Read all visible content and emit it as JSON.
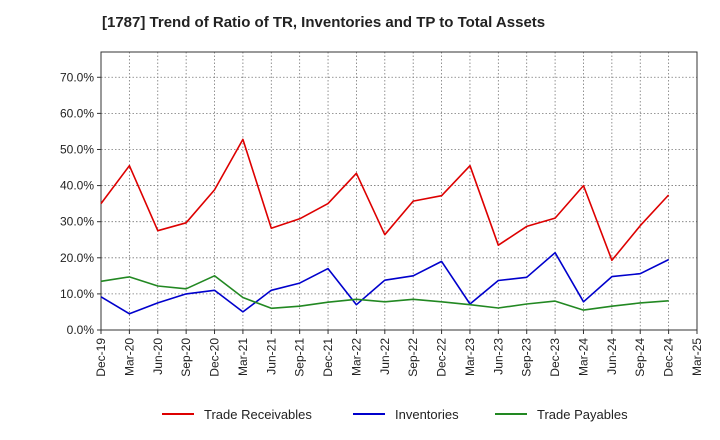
{
  "chart_data": {
    "type": "line",
    "title": "[1787]  Trend of Ratio of TR, Inventories and TP to Total Assets",
    "xlabel": "",
    "ylabel": "",
    "ylim": [
      0,
      0.77
    ],
    "yticks": [
      0,
      0.1,
      0.2,
      0.3,
      0.4,
      0.5,
      0.6,
      0.7
    ],
    "ytick_labels": [
      "0.0%",
      "10.0%",
      "20.0%",
      "30.0%",
      "40.0%",
      "50.0%",
      "60.0%",
      "70.0%"
    ],
    "x": [
      "2019-12",
      "2020-03",
      "2020-06",
      "2020-09",
      "2020-12",
      "2021-03",
      "2021-06",
      "2021-09",
      "2021-12",
      "2022-03",
      "2022-06",
      "2022-09",
      "2022-12",
      "2023-03",
      "2023-06",
      "2023-09",
      "2023-12",
      "2024-03",
      "2024-06",
      "2024-09",
      "2024-12",
      "2025-03"
    ],
    "xtick_labels": [
      "Dec-19",
      "Mar-20",
      "Jun-20",
      "Sep-20",
      "Dec-20",
      "Mar-21",
      "Jun-21",
      "Sep-21",
      "Dec-21",
      "Mar-22",
      "Jun-22",
      "Sep-22",
      "Dec-22",
      "Mar-23",
      "Jun-23",
      "Sep-23",
      "Dec-23",
      "Mar-24",
      "Jun-24",
      "Sep-24",
      "Dec-24",
      "Mar-25"
    ],
    "grid": true,
    "legend": "bottom",
    "series": [
      {
        "name": "Trade Receivables",
        "color": "#dd0000",
        "values": [
          0.35,
          0.455,
          0.275,
          0.297,
          0.388,
          0.528,
          0.282,
          0.308,
          0.35,
          0.434,
          0.264,
          0.357,
          0.372,
          0.455,
          0.235,
          0.287,
          0.31,
          0.4,
          0.193,
          0.289,
          0.374,
          null
        ]
      },
      {
        "name": "Inventories",
        "color": "#0000cc",
        "values": [
          0.092,
          0.045,
          0.075,
          0.1,
          0.11,
          0.05,
          0.11,
          0.13,
          0.17,
          0.07,
          0.138,
          0.15,
          0.19,
          0.072,
          0.137,
          0.146,
          0.214,
          0.078,
          0.148,
          0.156,
          0.195,
          null
        ]
      },
      {
        "name": "Trade Payables",
        "color": "#228822",
        "values": [
          0.135,
          0.147,
          0.122,
          0.114,
          0.15,
          0.09,
          0.06,
          0.066,
          0.077,
          0.085,
          0.078,
          0.085,
          0.078,
          0.07,
          0.061,
          0.072,
          0.08,
          0.055,
          0.066,
          0.075,
          0.081,
          null
        ]
      }
    ]
  }
}
